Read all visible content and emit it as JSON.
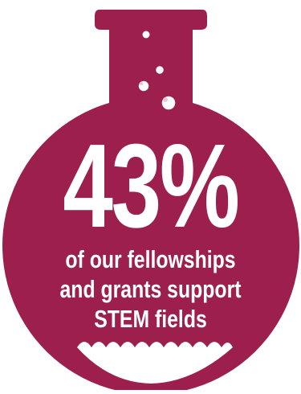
{
  "infographic": {
    "stat_value": "43%",
    "caption_lines": [
      "of our fellowships",
      "and grants support",
      "STEM fields"
    ],
    "icon": "flask-icon",
    "colors": {
      "flask": "#9c1f4d",
      "text": "#ffffff",
      "liquid": "#ffffff",
      "background": "#ffffff"
    }
  }
}
